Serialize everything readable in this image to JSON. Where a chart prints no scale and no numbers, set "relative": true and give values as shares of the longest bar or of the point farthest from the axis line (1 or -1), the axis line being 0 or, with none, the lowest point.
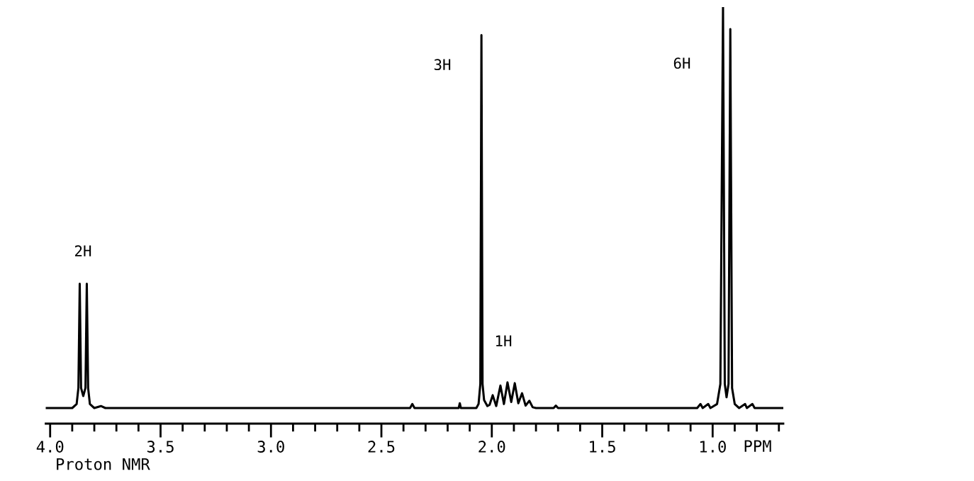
{
  "chart_data": {
    "type": "line",
    "relative": true,
    "xlabel": "PPM",
    "x": [
      4.02,
      3.9,
      3.88,
      3.872,
      3.866,
      3.86,
      3.85,
      3.84,
      3.834,
      3.828,
      3.82,
      3.8,
      3.77,
      3.75,
      2.37,
      2.36,
      2.35,
      2.15,
      2.145,
      2.14,
      2.07,
      2.06,
      2.052,
      2.047,
      2.042,
      2.035,
      2.02,
      2.01,
      1.996,
      1.98,
      1.961,
      1.945,
      1.929,
      1.912,
      1.896,
      1.88,
      1.863,
      1.847,
      1.83,
      1.815,
      1.8,
      1.72,
      1.71,
      1.7,
      1.07,
      1.055,
      1.045,
      1.02,
      1.01,
      0.98,
      0.965,
      0.953,
      0.945,
      0.937,
      0.928,
      0.92,
      0.912,
      0.9,
      0.88,
      0.853,
      0.845,
      0.82,
      0.81,
      0.68
    ],
    "series": [
      {
        "color": "#000000",
        "values": [
          0,
          0,
          0.01,
          0.05,
          0.31,
          0.05,
          0.03,
          0.05,
          0.31,
          0.05,
          0.01,
          0,
          0.005,
          0,
          0,
          0.01,
          0,
          0,
          0.012,
          0,
          0,
          0.01,
          0.06,
          0.93,
          0.06,
          0.02,
          0.005,
          0.008,
          0.032,
          0.005,
          0.056,
          0.01,
          0.064,
          0.015,
          0.062,
          0.012,
          0.037,
          0.006,
          0.018,
          0.002,
          0,
          0,
          0.006,
          0,
          0,
          0.01,
          0,
          0.01,
          0,
          0.01,
          0.06,
          1.0,
          0.06,
          0.027,
          0.06,
          0.945,
          0.05,
          0.01,
          0,
          0.01,
          0,
          0.01,
          0,
          0
        ]
      }
    ],
    "xlim": [
      4.02,
      0.68
    ],
    "xticks": [
      {
        "value": 4.0,
        "label": "4.0"
      },
      3.5,
      {
        "value": 3.0,
        "label": "3.0"
      },
      2.5,
      {
        "value": 2.0,
        "label": "2.0"
      },
      1.5,
      {
        "value": 1.0,
        "label": "1.0"
      }
    ],
    "grid": false,
    "legend": false,
    "marker": "none",
    "line_style": "solid",
    "annotations": [
      "2H",
      "3H",
      "1H",
      "6H",
      "Proton NMR"
    ]
  }
}
